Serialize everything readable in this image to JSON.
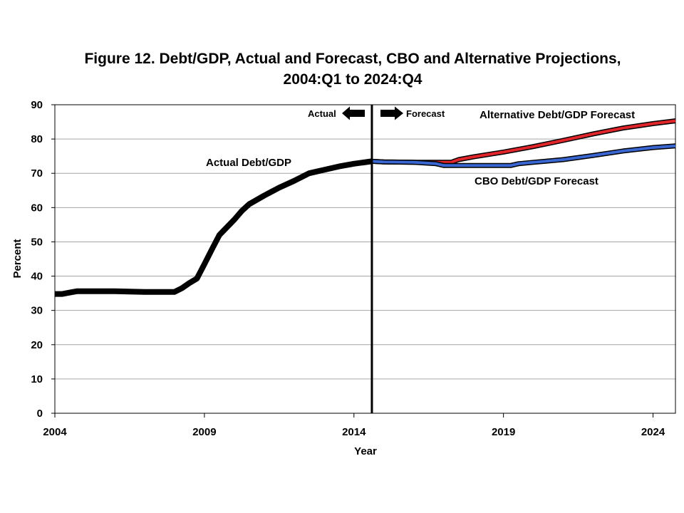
{
  "chart_data": {
    "type": "line",
    "title_line1": "Figure 12.  Debt/GDP, Actual and Forecast, CBO and Alternative Projections,",
    "title_line2": "2004:Q1 to 2024:Q4",
    "xlabel": "Year",
    "ylabel": "Percent",
    "xlim": [
      2004,
      2024.75
    ],
    "ylim": [
      0,
      90
    ],
    "x_ticks": [
      "2004",
      "2009",
      "2014",
      "2019",
      "2024"
    ],
    "y_ticks": [
      "0",
      "10",
      "20",
      "30",
      "40",
      "50",
      "60",
      "70",
      "80",
      "90"
    ],
    "grid": true,
    "forecast_start": 2014.6,
    "actual_arrow_label": "Actual",
    "forecast_arrow_label": "Forecast",
    "series": [
      {
        "key": "actual",
        "label": "Actual Debt/GDP",
        "color": "#000000",
        "points": [
          [
            2004.0,
            34.8
          ],
          [
            2004.25,
            34.8
          ],
          [
            2004.5,
            35.2
          ],
          [
            2004.75,
            35.6
          ],
          [
            2005.0,
            35.6
          ],
          [
            2006.0,
            35.6
          ],
          [
            2007.0,
            35.4
          ],
          [
            2008.0,
            35.4
          ],
          [
            2008.25,
            36.5
          ],
          [
            2008.5,
            38.0
          ],
          [
            2008.75,
            39.3
          ],
          [
            2009.0,
            43.5
          ],
          [
            2009.25,
            47.8
          ],
          [
            2009.5,
            52.0
          ],
          [
            2010.0,
            56.5
          ],
          [
            2010.25,
            59.0
          ],
          [
            2010.5,
            61.0
          ],
          [
            2011.0,
            63.5
          ],
          [
            2011.5,
            65.8
          ],
          [
            2012.0,
            67.8
          ],
          [
            2012.5,
            70.0
          ],
          [
            2013.0,
            71.0
          ],
          [
            2013.5,
            72.0
          ],
          [
            2014.0,
            72.8
          ],
          [
            2014.6,
            73.5
          ]
        ]
      },
      {
        "key": "alternative",
        "label": "Alternative Debt/GDP Forecast",
        "color": "#e0262b",
        "points": [
          [
            2014.6,
            73.5
          ],
          [
            2015.0,
            73.3
          ],
          [
            2016.0,
            73.2
          ],
          [
            2017.0,
            73.2
          ],
          [
            2017.25,
            73.2
          ],
          [
            2017.5,
            74.0
          ],
          [
            2018.0,
            74.8
          ],
          [
            2019.0,
            76.2
          ],
          [
            2020.0,
            77.8
          ],
          [
            2021.0,
            79.6
          ],
          [
            2022.0,
            81.5
          ],
          [
            2023.0,
            83.2
          ],
          [
            2024.0,
            84.5
          ],
          [
            2024.75,
            85.3
          ]
        ]
      },
      {
        "key": "cbo",
        "label": "CBO Debt/GDP Forecast",
        "color": "#3a66d1",
        "points": [
          [
            2014.6,
            73.5
          ],
          [
            2015.0,
            73.3
          ],
          [
            2016.0,
            73.2
          ],
          [
            2016.75,
            72.8
          ],
          [
            2017.0,
            72.3
          ],
          [
            2018.0,
            72.3
          ],
          [
            2019.0,
            72.3
          ],
          [
            2019.25,
            72.3
          ],
          [
            2019.5,
            72.8
          ],
          [
            2020.0,
            73.2
          ],
          [
            2021.0,
            74.0
          ],
          [
            2022.0,
            75.2
          ],
          [
            2023.0,
            76.5
          ],
          [
            2024.0,
            77.5
          ],
          [
            2024.75,
            78.0
          ]
        ]
      }
    ]
  }
}
